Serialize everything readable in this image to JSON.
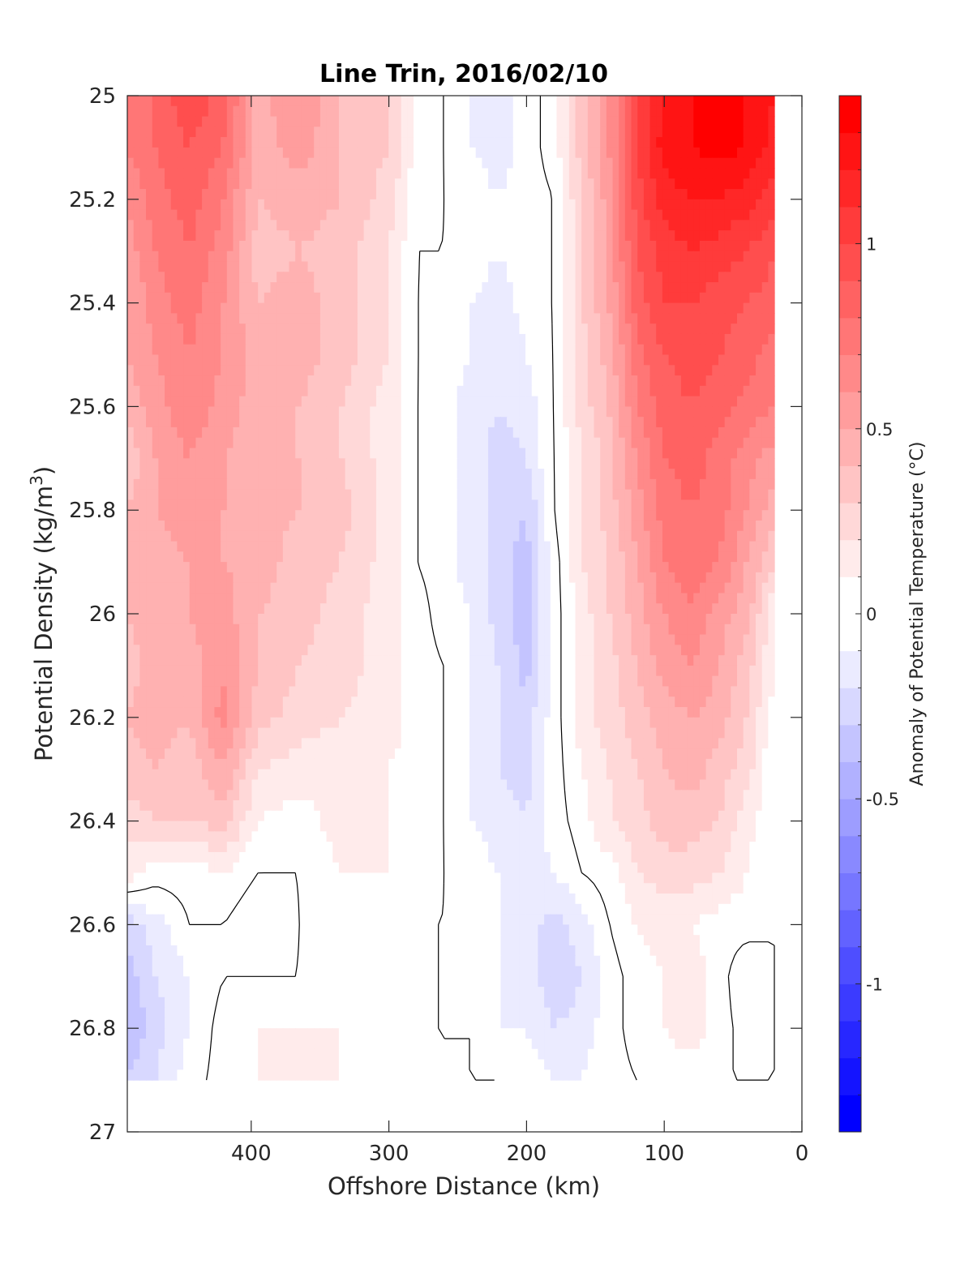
{
  "chart_data": {
    "type": "heatmap",
    "title": "Line Trin, 2016/02/10",
    "xlabel": "Offshore Distance (km)",
    "ylabel_main": "Potential Density (kg/m",
    "ylabel_sup": "3",
    "ylabel_close": ")",
    "xlim": [
      490,
      0
    ],
    "ylim": [
      25,
      27
    ],
    "y_reversed": true,
    "x_ticks": [
      400,
      300,
      200,
      100,
      0
    ],
    "y_ticks": [
      25,
      25.2,
      25.4,
      25.6,
      25.8,
      26,
      26.2,
      26.4,
      26.6,
      26.8,
      27
    ],
    "data_extent": {
      "x": [
        490,
        20
      ],
      "y": [
        25,
        26.9
      ]
    },
    "columns_x": [
      490,
      470,
      445,
      420,
      395,
      365,
      335,
      300,
      280,
      260,
      240,
      220,
      200,
      180,
      160,
      140,
      120,
      100,
      80,
      60,
      40,
      20
    ],
    "rows_y": [
      25,
      25.1,
      25.2,
      25.3,
      25.4,
      25.5,
      25.6,
      25.7,
      25.8,
      25.9,
      26,
      26.1,
      26.2,
      26.3,
      26.4,
      26.5,
      26.6,
      26.7,
      26.8,
      26.9
    ],
    "values": [
      [
        0.75,
        0.8,
        1.0,
        0.85,
        0.45,
        0.6,
        0.4,
        0.3,
        0.05,
        0.0,
        -0.1,
        -0.15,
        -0.05,
        0.05,
        0.35,
        0.6,
        1.0,
        1.2,
        1.3,
        1.35,
        1.3,
        1.2
      ],
      [
        0.7,
        0.8,
        0.9,
        0.8,
        0.45,
        0.55,
        0.4,
        0.3,
        0.05,
        0.0,
        -0.1,
        -0.15,
        -0.05,
        0.05,
        0.35,
        0.6,
        1.0,
        1.25,
        1.3,
        1.35,
        1.3,
        1.15
      ],
      [
        0.6,
        0.75,
        0.85,
        0.7,
        0.4,
        0.45,
        0.4,
        0.25,
        0.05,
        0.0,
        -0.05,
        -0.1,
        -0.05,
        0.0,
        0.3,
        0.55,
        0.95,
        1.15,
        1.2,
        1.2,
        1.15,
        1.05
      ],
      [
        0.55,
        0.7,
        0.8,
        0.65,
        0.35,
        0.4,
        0.35,
        0.2,
        0.0,
        0.0,
        -0.05,
        -0.1,
        -0.05,
        0.0,
        0.3,
        0.55,
        0.9,
        1.05,
        1.1,
        1.05,
        1.0,
        0.9
      ],
      [
        0.5,
        0.65,
        0.75,
        0.6,
        0.4,
        0.45,
        0.35,
        0.2,
        0.0,
        -0.05,
        -0.1,
        -0.15,
        -0.05,
        0.0,
        0.3,
        0.5,
        0.85,
        1.0,
        1.0,
        0.95,
        0.9,
        0.85
      ],
      [
        0.5,
        0.6,
        0.7,
        0.6,
        0.45,
        0.45,
        0.35,
        0.2,
        0.0,
        -0.05,
        -0.1,
        -0.2,
        -0.1,
        0.0,
        0.25,
        0.45,
        0.75,
        0.9,
        0.95,
        0.9,
        0.85,
        0.75
      ],
      [
        0.45,
        0.55,
        0.7,
        0.55,
        0.45,
        0.4,
        0.3,
        0.15,
        0.0,
        -0.05,
        -0.15,
        -0.2,
        -0.15,
        0.0,
        0.25,
        0.4,
        0.7,
        0.85,
        0.9,
        0.85,
        0.75,
        0.7
      ],
      [
        0.3,
        0.5,
        0.6,
        0.5,
        0.45,
        0.4,
        0.3,
        0.15,
        0.0,
        -0.05,
        -0.15,
        -0.25,
        -0.2,
        0.0,
        0.2,
        0.35,
        0.6,
        0.8,
        0.85,
        0.75,
        0.65,
        0.55
      ],
      [
        0.4,
        0.5,
        0.55,
        0.5,
        0.45,
        0.4,
        0.35,
        0.15,
        0.0,
        -0.05,
        -0.15,
        -0.25,
        -0.3,
        0.0,
        0.2,
        0.35,
        0.55,
        0.75,
        0.8,
        0.75,
        0.6,
        0.45
      ],
      [
        0.4,
        0.45,
        0.5,
        0.5,
        0.45,
        0.35,
        0.3,
        0.15,
        0.0,
        -0.05,
        -0.15,
        -0.25,
        -0.35,
        -0.05,
        0.2,
        0.3,
        0.5,
        0.7,
        0.75,
        0.7,
        0.5,
        0.3
      ],
      [
        0.4,
        0.45,
        0.5,
        0.55,
        0.4,
        0.35,
        0.25,
        0.15,
        0.05,
        -0.05,
        -0.1,
        -0.25,
        -0.35,
        -0.05,
        0.15,
        0.3,
        0.45,
        0.6,
        0.7,
        0.55,
        0.45,
        0.1
      ],
      [
        0.35,
        0.45,
        0.45,
        0.6,
        0.4,
        0.3,
        0.25,
        0.15,
        0.05,
        0.0,
        -0.1,
        -0.2,
        -0.35,
        -0.05,
        0.15,
        0.25,
        0.4,
        0.55,
        0.6,
        0.5,
        0.35,
        0.1
      ],
      [
        0.4,
        0.45,
        0.4,
        0.65,
        0.35,
        0.25,
        0.2,
        0.15,
        0.05,
        0.0,
        -0.1,
        -0.2,
        -0.25,
        -0.05,
        0.15,
        0.25,
        0.35,
        0.45,
        0.5,
        0.45,
        0.3,
        0.05
      ],
      [
        0.35,
        0.4,
        0.35,
        0.5,
        0.2,
        0.15,
        0.15,
        0.1,
        0.05,
        0.0,
        -0.1,
        -0.2,
        -0.25,
        -0.05,
        0.1,
        0.2,
        0.3,
        0.4,
        0.45,
        0.35,
        0.25,
        0.0
      ],
      [
        0.25,
        0.3,
        0.3,
        0.35,
        0.1,
        0.05,
        0.15,
        0.1,
        0.05,
        0.0,
        -0.1,
        -0.15,
        -0.2,
        -0.05,
        0.05,
        0.2,
        0.25,
        0.35,
        0.35,
        0.3,
        0.15,
        0.0
      ],
      [
        0.15,
        0.05,
        0.05,
        0.1,
        0.0,
        0.0,
        0.1,
        0.1,
        0.05,
        0.0,
        -0.05,
        -0.1,
        -0.15,
        -0.1,
        0.0,
        0.05,
        0.2,
        0.25,
        0.25,
        0.2,
        0.1,
        0.0
      ],
      [
        -0.25,
        -0.15,
        0.0,
        0.0,
        -0.1,
        0.0,
        0.1,
        0.05,
        0.0,
        0.0,
        -0.05,
        -0.1,
        -0.15,
        -0.25,
        -0.15,
        0.0,
        0.1,
        0.15,
        0.1,
        0.05,
        0.05,
        0.0
      ],
      [
        -0.35,
        -0.2,
        -0.1,
        0.0,
        0.0,
        0.0,
        0.1,
        0.05,
        0.0,
        0.0,
        -0.05,
        -0.1,
        -0.1,
        -0.3,
        -0.2,
        -0.05,
        0.05,
        0.1,
        0.15,
        0.05,
        -0.1,
        0.0
      ],
      [
        -0.4,
        -0.25,
        -0.1,
        0.05,
        0.1,
        0.1,
        0.1,
        0.05,
        0.0,
        0.0,
        0.0,
        -0.1,
        -0.1,
        -0.2,
        -0.15,
        -0.05,
        0.05,
        0.1,
        0.15,
        0.05,
        -0.05,
        0.0
      ],
      [
        -0.3,
        -0.2,
        -0.05,
        0.05,
        0.1,
        0.15,
        0.1,
        0.05,
        0.0,
        0.0,
        0.0,
        0.0,
        -0.05,
        -0.1,
        -0.1,
        -0.05,
        0.0,
        0.05,
        0.05,
        0.0,
        0.0,
        0.0
      ]
    ],
    "colorbar": {
      "label": "Anomaly of Potential Temperature (°C)",
      "min": -1.4,
      "max": 1.4,
      "step": 0.1,
      "ticks": [
        1,
        0.5,
        0,
        -0.5,
        -1
      ],
      "tick_labels": [
        "1",
        "0.5",
        "0",
        "-0.5",
        "-1"
      ],
      "neutral_band": [
        -0.1,
        0.1
      ],
      "positive_color": "#ff0000",
      "negative_color": "#0000ff",
      "neutral_color": "#ffffff"
    },
    "zero_contour_color": "#000000",
    "grid": false
  }
}
